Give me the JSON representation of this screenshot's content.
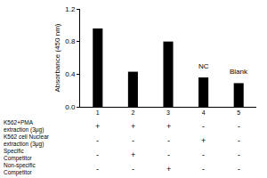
{
  "chart_data": {
    "type": "bar",
    "categories": [
      "1",
      "2",
      "3",
      "4",
      "5"
    ],
    "values": [
      0.96,
      0.43,
      0.8,
      0.36,
      0.29
    ],
    "color": "#000000",
    "y_label": "Absorbance (450 nm)",
    "ylim": [
      0,
      1.2
    ],
    "yticks": [
      {
        "value": 0,
        "label": "0.0"
      },
      0.4,
      0.8,
      1.2
    ],
    "grid": false,
    "annotations": [
      {
        "category": "4",
        "text": "NC"
      },
      {
        "category": "5",
        "text": "Blank"
      }
    ],
    "conditions": [
      {
        "label_lines": [
          "K562+PMA",
          "extraction (3μg)"
        ],
        "cells": [
          "+",
          "+",
          "+",
          "-",
          "-"
        ]
      },
      {
        "label_lines": [
          "K562 cell Nuclear",
          "extraction (3μg)"
        ],
        "cells": [
          "-",
          "-",
          "-",
          "+",
          "-"
        ]
      },
      {
        "label_lines": [
          "Specific",
          "Competitor"
        ],
        "cells": [
          "-",
          "+",
          "-",
          "-",
          "-"
        ]
      },
      {
        "label_lines": [
          "Non-specific",
          "Competitor"
        ],
        "cells": [
          "-",
          "-",
          "+",
          "-",
          "-"
        ]
      }
    ]
  }
}
